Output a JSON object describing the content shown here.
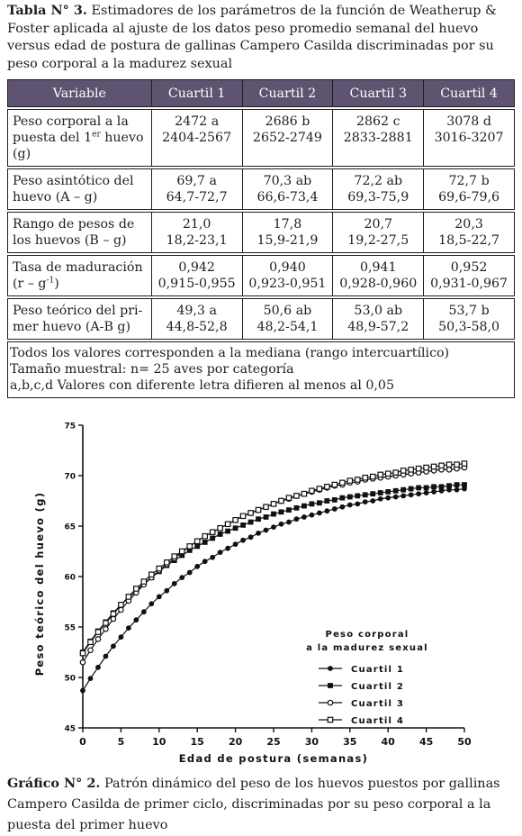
{
  "table_caption": {
    "label": "Tabla N° 3.",
    "text": " Estimadores de los parámetros de la función de Weatherup & Foster aplicada al ajuste de los datos peso promedio semanal del huevo versus edad de postura de gallinas Campero Casilda discriminadas por su peso corporal a la madurez sexual"
  },
  "table": {
    "headers": [
      "Variable",
      "Cuartil 1",
      "Cuartil 2",
      "Cuartil 3",
      "Cuartil 4"
    ],
    "rows": [
      {
        "variable_a": "Peso corporal a la puesta del 1",
        "variable_sup": "er",
        "variable_b": " huevo (g)",
        "cells": [
          [
            "2472 a",
            "2404-2567"
          ],
          [
            "2686 b",
            "2652-2749"
          ],
          [
            "2862 c",
            "2833-2881"
          ],
          [
            "3078 d",
            "3016-3207"
          ]
        ]
      },
      {
        "variable": "Peso asintótico del huevo (A – g)",
        "cells": [
          [
            "69,7 a",
            "64,7-72,7"
          ],
          [
            "70,3 ab",
            "66,6-73,4"
          ],
          [
            "72,2 ab",
            "69,3-75,9"
          ],
          [
            "72,7 b",
            "69,6-79,6"
          ]
        ]
      },
      {
        "variable": "Rango de pesos de los huevos (B – g)",
        "cells": [
          [
            "21,0",
            "18,2-23,1"
          ],
          [
            "17,8",
            "15,9-21,9"
          ],
          [
            "20,7",
            "19,2-27,5"
          ],
          [
            "20,3",
            "18,5-22,7"
          ]
        ]
      },
      {
        "variable_a": "Tasa de maduración (r – g",
        "variable_sup": "-1",
        "variable_b": ")",
        "cells": [
          [
            "0,942",
            "0,915-0,955"
          ],
          [
            "0,940",
            "0,923-0,951"
          ],
          [
            "0,941",
            "0,928-0,960"
          ],
          [
            "0,952",
            "0,931-0,967"
          ]
        ]
      },
      {
        "variable": "Peso teórico del pri-mer huevo (A-B g)",
        "cells": [
          [
            "49,3 a",
            "44,8-52,8"
          ],
          [
            "50,6 ab",
            "48,2-54,1"
          ],
          [
            "53,0 ab",
            "48,9-57,2"
          ],
          [
            "53,7 b",
            "50,3-58,0"
          ]
        ]
      }
    ],
    "notes": [
      "Todos los valores corresponden a la mediana (rango intercuartílico)",
      "Tamaño muestral: n= 25 aves por categoría",
      "a,b,c,d Valores con diferente letra difieren al menos al 0,05"
    ]
  },
  "chart_data": {
    "type": "line",
    "xlabel": "Edad de postura (semanas)",
    "ylabel": "Peso teórico del huevo (g)",
    "xlim": [
      0,
      50
    ],
    "ylim": [
      45,
      75
    ],
    "xticks": [
      0,
      5,
      10,
      15,
      20,
      25,
      30,
      35,
      40,
      45,
      50
    ],
    "yticks": [
      45,
      50,
      55,
      60,
      65,
      70,
      75
    ],
    "grid": false,
    "legend_title": [
      "Peso corporal",
      "a la madurez sexual"
    ],
    "legend_position": "lower-right",
    "x": [
      0,
      1,
      2,
      3,
      4,
      5,
      6,
      7,
      8,
      9,
      10,
      11,
      12,
      13,
      14,
      15,
      16,
      17,
      18,
      19,
      20,
      21,
      22,
      23,
      24,
      25,
      26,
      27,
      28,
      29,
      30,
      31,
      32,
      33,
      34,
      35,
      36,
      37,
      38,
      39,
      40,
      41,
      42,
      43,
      44,
      45,
      46,
      47,
      48,
      49,
      50
    ],
    "series": [
      {
        "name": "Cuartil 1",
        "marker": "filled-circle",
        "A": 69.7,
        "B": 21.0,
        "r": 0.942,
        "values": [
          48.7,
          49.9,
          51.0,
          52.1,
          53.1,
          54.0,
          54.9,
          55.7,
          56.5,
          57.3,
          58.0,
          58.6,
          59.3,
          59.9,
          60.4,
          61.0,
          61.5,
          61.9,
          62.4,
          62.8,
          63.2,
          63.6,
          63.9,
          64.3,
          64.6,
          64.9,
          65.2,
          65.4,
          65.7,
          65.9,
          66.1,
          66.3,
          66.5,
          66.7,
          66.9,
          67.1,
          67.2,
          67.4,
          67.5,
          67.7,
          67.8,
          67.9,
          68.0,
          68.1,
          68.2,
          68.3,
          68.4,
          68.5,
          68.6,
          68.6,
          68.7
        ]
      },
      {
        "name": "Cuartil 2",
        "marker": "filled-square",
        "A": 70.3,
        "B": 17.8,
        "r": 0.94,
        "values": [
          52.5,
          53.6,
          54.6,
          55.5,
          56.4,
          57.2,
          57.9,
          58.6,
          59.3,
          59.9,
          60.5,
          61.1,
          61.6,
          62.1,
          62.6,
          63.0,
          63.4,
          63.8,
          64.2,
          64.5,
          64.8,
          65.1,
          65.4,
          65.7,
          65.9,
          66.2,
          66.4,
          66.6,
          66.8,
          67.0,
          67.2,
          67.3,
          67.5,
          67.6,
          67.8,
          67.9,
          68.0,
          68.1,
          68.2,
          68.3,
          68.4,
          68.5,
          68.6,
          68.7,
          68.8,
          68.8,
          68.9,
          68.9,
          69.0,
          69.1,
          69.1
        ]
      },
      {
        "name": "Cuartil 3",
        "marker": "open-circle",
        "A": 72.2,
        "B": 20.7,
        "r": 0.941,
        "values": [
          51.5,
          52.7,
          53.8,
          54.8,
          55.8,
          56.7,
          57.6,
          58.4,
          59.2,
          59.9,
          60.6,
          61.2,
          61.8,
          62.4,
          63.0,
          63.5,
          64.0,
          64.4,
          64.8,
          65.2,
          65.6,
          66.0,
          66.3,
          66.6,
          66.9,
          67.2,
          67.5,
          67.7,
          68.0,
          68.2,
          68.4,
          68.6,
          68.8,
          69.0,
          69.1,
          69.3,
          69.4,
          69.6,
          69.7,
          69.8,
          69.9,
          70.0,
          70.1,
          70.2,
          70.3,
          70.4,
          70.5,
          70.6,
          70.6,
          70.7,
          70.8
        ]
      },
      {
        "name": "Cuartil 4",
        "marker": "open-square",
        "A": 72.7,
        "B": 20.3,
        "r": 0.952,
        "values": [
          52.4,
          53.5,
          54.5,
          55.4,
          56.3,
          57.2,
          58.0,
          58.8,
          59.5,
          60.2,
          60.8,
          61.4,
          62.0,
          62.5,
          63.0,
          63.5,
          64.0,
          64.4,
          64.8,
          65.2,
          65.6,
          66.0,
          66.3,
          66.6,
          66.9,
          67.2,
          67.5,
          67.8,
          68.0,
          68.2,
          68.5,
          68.7,
          68.9,
          69.1,
          69.3,
          69.5,
          69.6,
          69.8,
          69.9,
          70.1,
          70.2,
          70.3,
          70.5,
          70.6,
          70.7,
          70.8,
          70.9,
          71.0,
          71.1,
          71.1,
          71.2
        ]
      }
    ]
  },
  "figure_caption": {
    "label": "Gráfico N° 2.",
    "text": " Patrón dinámico del peso de los huevos puestos por gallinas Campero Casilda de primer ciclo, discriminadas por su peso corporal a la puesta del primer huevo"
  }
}
